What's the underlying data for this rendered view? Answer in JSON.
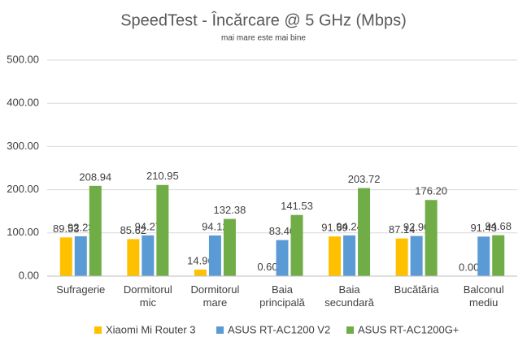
{
  "chart_data": {
    "type": "bar",
    "title": "SpeedTest - Încărcare @ 5 GHz (Mbps)",
    "subtitle": "mai mare este mai bine",
    "categories": [
      "Sufragerie",
      "Dormitorul mic",
      "Dormitorul mare",
      "Baia principală",
      "Baia secundară",
      "Bucătăria",
      "Balconul mediu"
    ],
    "series": [
      {
        "name": "Xiaomi Mi Router 3",
        "color": "#FFC000",
        "values": [
          89.53,
          85.62,
          14.96,
          0.6,
          91.69,
          87.14,
          0
        ],
        "value_labels": [
          "89.53",
          "85.62",
          "14.96",
          "0.60",
          "91.69",
          "87.14",
          "0.00"
        ]
      },
      {
        "name": "ASUS RT-AC1200 V2",
        "color": "#5B9BD5",
        "values": [
          92.23,
          94.27,
          94.12,
          83.4,
          94.24,
          92.9,
          91.43
        ],
        "value_labels": [
          "92.23",
          "94.27",
          "94.12",
          "83.40",
          "94.24",
          "92.90",
          "91.43"
        ]
      },
      {
        "name": "ASUS RT-AC1200G+",
        "color": "#70AD47",
        "values": [
          208.94,
          210.95,
          132.38,
          141.53,
          203.72,
          176.2,
          94.68
        ],
        "value_labels": [
          "208.94",
          "210.95",
          "132.38",
          "141.53",
          "203.72",
          "176.20",
          "94.68"
        ]
      }
    ],
    "ylim": [
      0,
      500
    ],
    "yticks": [
      {
        "value": 0,
        "label": "0.00"
      },
      {
        "value": 100,
        "label": "100.00"
      },
      {
        "value": 200,
        "label": "200.00"
      },
      {
        "value": 300,
        "label": "300.00"
      },
      {
        "value": 400,
        "label": "400.00"
      },
      {
        "value": 500,
        "label": "500.00"
      }
    ],
    "grid": true,
    "legend": "bottom"
  }
}
